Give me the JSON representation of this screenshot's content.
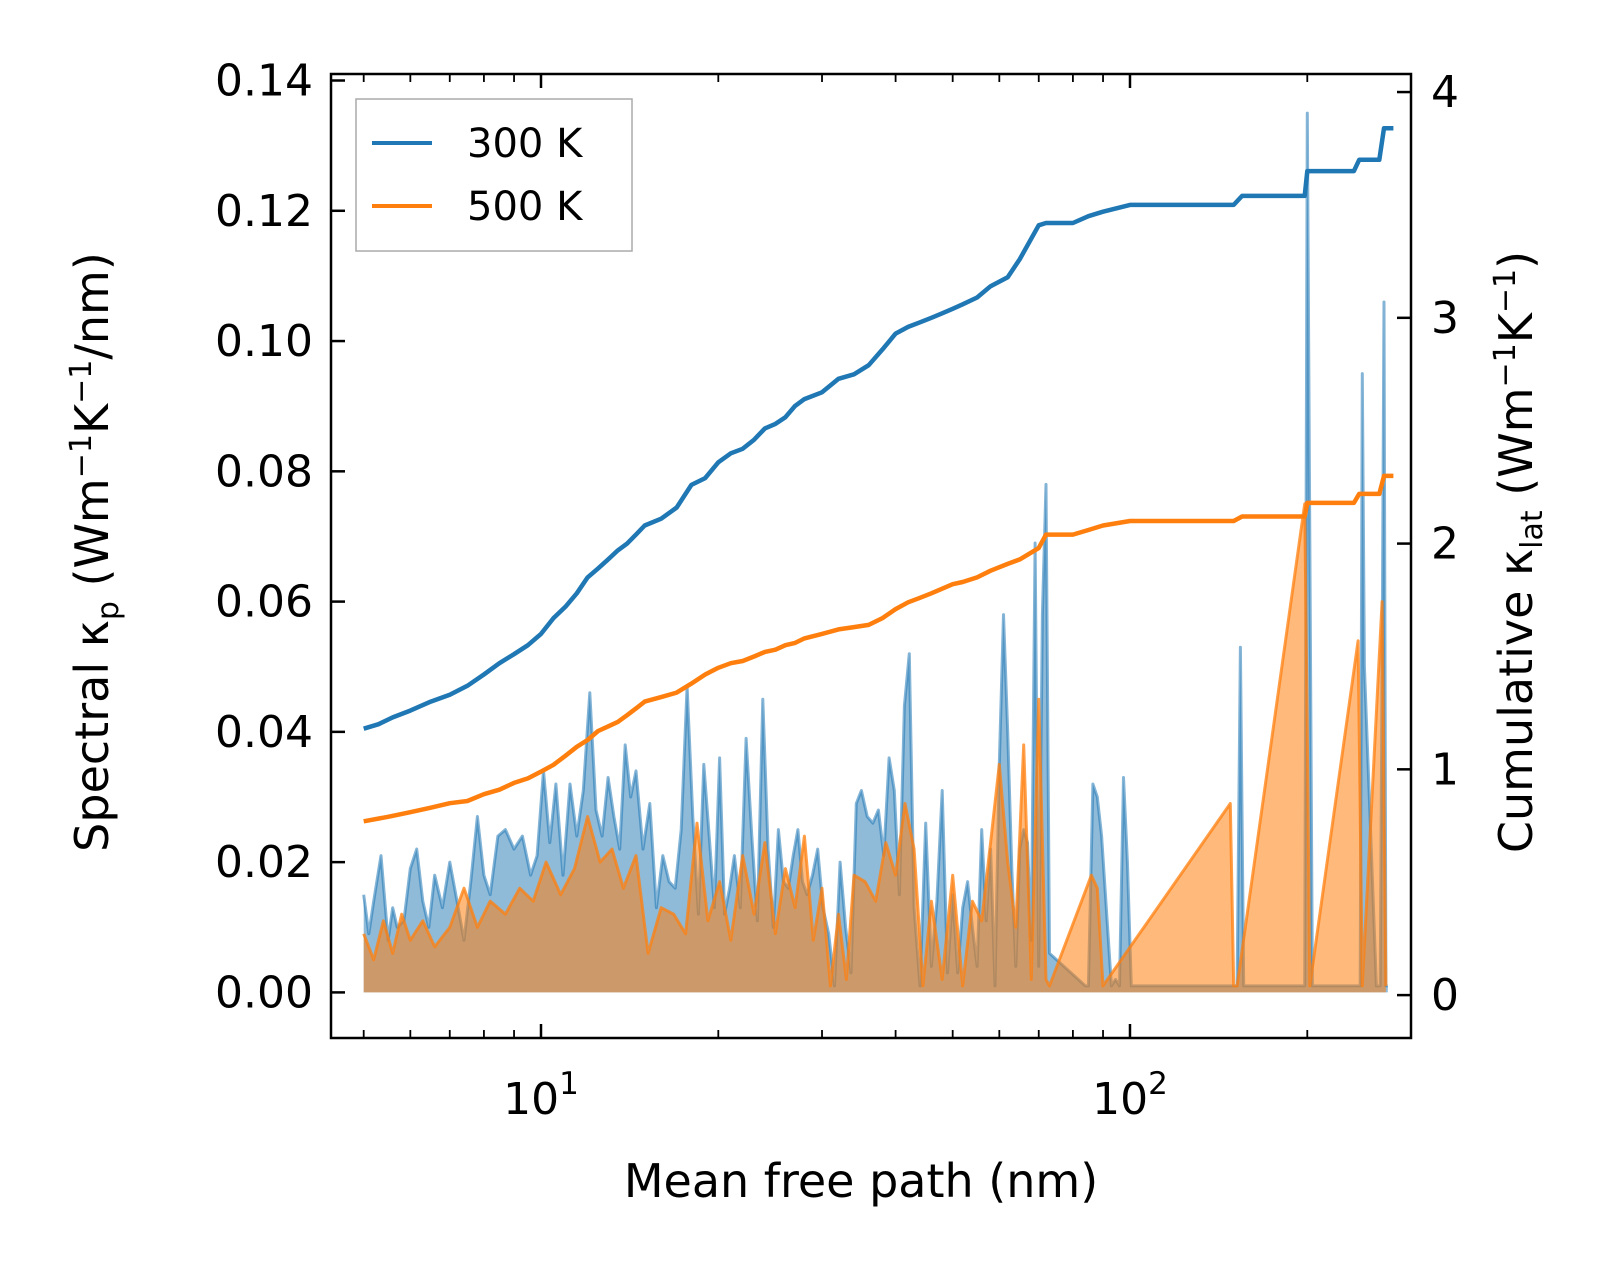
{
  "chart_data": {
    "type": "line",
    "xscale": "log",
    "xlim": [
      4.4,
      300
    ],
    "ylim_left": [
      -0.007,
      0.141
    ],
    "ylim_right": [
      -0.19,
      4.08
    ],
    "xlabel": "Mean free path (nm)",
    "ylabel_left": {
      "pre": "Spectral κ",
      "sub": "p",
      "post": " (Wm",
      "sup1": "−1",
      "mid": "K",
      "sup2": "−1",
      "end": "/nm)"
    },
    "ylabel_right": {
      "pre": "Cumulative κ",
      "sub": "lat",
      "post": " (Wm",
      "sup1": "−1",
      "mid": "K",
      "sup2": "−1",
      "end": ")"
    },
    "yticks_left": [
      "0.00",
      "0.02",
      "0.04",
      "0.06",
      "0.08",
      "0.10",
      "0.12",
      "0.14"
    ],
    "yticks_left_values": [
      0,
      0.02,
      0.04,
      0.06,
      0.08,
      0.1,
      0.12,
      0.14
    ],
    "yticks_right": [
      "0",
      "1",
      "2",
      "3",
      "4"
    ],
    "yticks_right_values": [
      0,
      1,
      2,
      3,
      4
    ],
    "xticks_major": [
      {
        "base": "10",
        "exp": "1",
        "value": 10
      },
      {
        "base": "10",
        "exp": "2",
        "value": 100
      }
    ],
    "xticks_minor": [
      5,
      6,
      7,
      8,
      9,
      20,
      30,
      40,
      50,
      60,
      70,
      80,
      90,
      200,
      300
    ],
    "legend": {
      "placement": "top-left",
      "entries": [
        {
          "label": "300 K",
          "color": "#1f77b4"
        },
        {
          "label": "500 K",
          "color": "#ff7f0e"
        }
      ]
    },
    "series": [
      {
        "name": "300 K",
        "color": "#1f77b4",
        "cumulative_x": [
          5.0,
          5.3,
          5.6,
          6.0,
          6.5,
          7.0,
          7.5,
          8.0,
          8.5,
          9.0,
          9.5,
          10.0,
          10.5,
          11.0,
          11.5,
          12.0,
          12.5,
          13.0,
          13.5,
          14.0,
          14.5,
          15.0,
          16.0,
          17.0,
          18.0,
          19.0,
          20.0,
          21.0,
          22.0,
          23.0,
          24.0,
          25.0,
          26.0,
          27.0,
          28.0,
          30.0,
          32.0,
          34.0,
          36.0,
          38.0,
          40.0,
          42.0,
          44.0,
          46.0,
          48.0,
          50.0,
          52.0,
          55.0,
          58.0,
          62.0,
          65.0,
          70.0,
          72.0,
          80.0,
          85.0,
          90.0,
          100.0,
          120.0,
          150.0,
          155.0,
          198.0,
          200.0,
          240.0,
          245.0,
          265.0,
          270.0,
          280.0
        ],
        "cumulative_y": [
          1.18,
          1.2,
          1.23,
          1.26,
          1.3,
          1.33,
          1.37,
          1.42,
          1.47,
          1.51,
          1.55,
          1.6,
          1.67,
          1.72,
          1.78,
          1.85,
          1.89,
          1.93,
          1.97,
          2.0,
          2.04,
          2.08,
          2.11,
          2.16,
          2.26,
          2.29,
          2.36,
          2.4,
          2.42,
          2.46,
          2.51,
          2.53,
          2.56,
          2.61,
          2.64,
          2.67,
          2.73,
          2.75,
          2.79,
          2.86,
          2.93,
          2.96,
          2.98,
          3.0,
          3.02,
          3.04,
          3.06,
          3.09,
          3.14,
          3.18,
          3.26,
          3.41,
          3.42,
          3.42,
          3.45,
          3.47,
          3.5,
          3.5,
          3.5,
          3.54,
          3.54,
          3.65,
          3.65,
          3.7,
          3.7,
          3.84,
          3.84
        ],
        "spectral_x": [
          5.0,
          5.1,
          5.2,
          5.35,
          5.5,
          5.6,
          5.7,
          5.85,
          6.0,
          6.15,
          6.3,
          6.45,
          6.6,
          6.8,
          7.0,
          7.2,
          7.4,
          7.6,
          7.8,
          8.0,
          8.2,
          8.45,
          8.7,
          9.0,
          9.3,
          9.6,
          9.85,
          10.1,
          10.35,
          10.6,
          10.9,
          11.2,
          11.5,
          11.8,
          12.1,
          12.4,
          12.7,
          13.0,
          13.3,
          13.6,
          13.9,
          14.2,
          14.5,
          14.9,
          15.3,
          15.7,
          16.1,
          16.5,
          16.9,
          17.3,
          17.7,
          18.1,
          18.5,
          18.9,
          19.3,
          19.7,
          20.1,
          20.5,
          20.9,
          21.3,
          21.8,
          22.3,
          22.8,
          23.3,
          23.8,
          24.3,
          24.8,
          25.3,
          25.8,
          26.3,
          26.8,
          27.3,
          27.8,
          28.3,
          28.9,
          29.5,
          30.1,
          30.8,
          31.5,
          32.2,
          32.9,
          33.6,
          34.3,
          35.0,
          35.8,
          36.6,
          37.4,
          38.2,
          39.0,
          39.8,
          40.6,
          41.4,
          42.2,
          43.0,
          44.0,
          45.0,
          46.0,
          47.0,
          48.0,
          49.0,
          50.0,
          51.0,
          52.0,
          53.0,
          54.0,
          55.0,
          56.0,
          57.0,
          58.0,
          59.0,
          60.0,
          61.0,
          62.0,
          63.0,
          64.0,
          65.0,
          66.0,
          67.0,
          68.0,
          69.0,
          70.0,
          71.0,
          72.0,
          73.0,
          84.0,
          85.0,
          86.5,
          88.0,
          89.5,
          93.0,
          94.5,
          96.0,
          97.5,
          99.0,
          100.5,
          148.0,
          150.0,
          152.0,
          154.0,
          156.0,
          194.0,
          196.0,
          198.0,
          200.0,
          202.0,
          204.0,
          206.0,
          242.0,
          244.0,
          246.0,
          248.0,
          250.0,
          262.0,
          264.0,
          266.0,
          268.0,
          270.0,
          272.0,
          274.0
        ],
        "spectral_y": [
          0.015,
          0.009,
          0.014,
          0.021,
          0.008,
          0.013,
          0.01,
          0.011,
          0.019,
          0.022,
          0.014,
          0.01,
          0.018,
          0.013,
          0.02,
          0.014,
          0.008,
          0.017,
          0.027,
          0.018,
          0.015,
          0.024,
          0.025,
          0.022,
          0.024,
          0.018,
          0.021,
          0.034,
          0.023,
          0.032,
          0.018,
          0.032,
          0.024,
          0.031,
          0.046,
          0.028,
          0.024,
          0.033,
          0.027,
          0.022,
          0.038,
          0.03,
          0.034,
          0.022,
          0.029,
          0.013,
          0.021,
          0.017,
          0.016,
          0.025,
          0.047,
          0.027,
          0.012,
          0.035,
          0.024,
          0.013,
          0.036,
          0.012,
          0.016,
          0.021,
          0.013,
          0.039,
          0.024,
          0.011,
          0.045,
          0.022,
          0.01,
          0.025,
          0.017,
          0.016,
          0.021,
          0.025,
          0.017,
          0.015,
          0.018,
          0.022,
          0.013,
          0.009,
          0.001,
          0.02,
          0.01,
          0.003,
          0.029,
          0.031,
          0.027,
          0.026,
          0.028,
          0.021,
          0.036,
          0.031,
          0.015,
          0.044,
          0.052,
          0.013,
          0.001,
          0.026,
          0.004,
          0.014,
          0.031,
          0.003,
          0.015,
          0.003,
          0.013,
          0.017,
          0.01,
          0.004,
          0.025,
          0.011,
          0.022,
          0.001,
          0.035,
          0.058,
          0.04,
          0.019,
          0.004,
          0.022,
          0.025,
          0.023,
          0.008,
          0.069,
          0.004,
          0.058,
          0.078,
          0.006,
          0.001,
          0.001,
          0.032,
          0.03,
          0.024,
          0.001,
          0.002,
          0.001,
          0.033,
          0.02,
          0.001,
          0.001,
          0.001,
          0.001,
          0.053,
          0.001,
          0.001,
          0.001,
          0.001,
          0.135,
          0.07,
          0.001,
          0.001,
          0.001,
          0.001,
          0.001,
          0.095,
          0.05,
          0.001,
          0.001,
          0.001,
          0.05,
          0.106,
          0.001,
          0.001,
          0.001
        ]
      },
      {
        "name": "500 K",
        "color": "#ff7f0e",
        "cumulative_x": [
          5.0,
          5.5,
          6.0,
          6.5,
          7.0,
          7.5,
          8.0,
          8.5,
          9.0,
          9.5,
          10.0,
          10.5,
          11.0,
          11.5,
          12.0,
          12.5,
          13.0,
          13.5,
          14.0,
          14.5,
          15.0,
          16.0,
          17.0,
          18.0,
          19.0,
          20.0,
          21.0,
          22.0,
          23.0,
          24.0,
          25.0,
          26.0,
          27.0,
          28.0,
          30.0,
          32.0,
          34.0,
          36.0,
          38.0,
          40.0,
          42.0,
          44.0,
          46.0,
          48.0,
          50.0,
          52.0,
          55.0,
          58.0,
          62.0,
          65.0,
          70.0,
          72.0,
          80.0,
          85.0,
          90.0,
          100.0,
          150.0,
          155.0,
          198.0,
          200.0,
          240.0,
          245.0,
          265.0,
          270.0,
          280.0
        ],
        "cumulative_y": [
          0.77,
          0.79,
          0.81,
          0.83,
          0.85,
          0.86,
          0.89,
          0.91,
          0.94,
          0.96,
          0.99,
          1.02,
          1.06,
          1.1,
          1.13,
          1.17,
          1.19,
          1.21,
          1.24,
          1.27,
          1.3,
          1.32,
          1.34,
          1.38,
          1.42,
          1.45,
          1.47,
          1.48,
          1.5,
          1.52,
          1.53,
          1.55,
          1.56,
          1.58,
          1.6,
          1.62,
          1.63,
          1.64,
          1.67,
          1.71,
          1.74,
          1.76,
          1.78,
          1.8,
          1.82,
          1.83,
          1.85,
          1.88,
          1.91,
          1.93,
          1.98,
          2.04,
          2.04,
          2.06,
          2.08,
          2.1,
          2.1,
          2.12,
          2.12,
          2.18,
          2.18,
          2.22,
          2.22,
          2.3,
          2.3
        ],
        "spectral_x": [
          5.0,
          5.2,
          5.4,
          5.6,
          5.8,
          6.0,
          6.3,
          6.6,
          7.0,
          7.4,
          7.8,
          8.2,
          8.7,
          9.2,
          9.7,
          10.2,
          10.8,
          11.4,
          12.0,
          12.6,
          13.2,
          13.8,
          14.5,
          15.2,
          16.0,
          16.8,
          17.6,
          18.4,
          19.2,
          20.1,
          21.0,
          22.0,
          23.0,
          24.0,
          25.0,
          26.0,
          27.0,
          28.0,
          29.0,
          30.0,
          31.0,
          32.0,
          33.0,
          34.0,
          35.5,
          37.0,
          38.5,
          40.0,
          41.5,
          43.0,
          44.5,
          46.0,
          48.0,
          50.0,
          52.0,
          54.0,
          56.0,
          58.0,
          60.0,
          62.0,
          64.0,
          66.0,
          68.0,
          70.0,
          72.0,
          73.0,
          86.0,
          88.0,
          90.0,
          148.0,
          150.0,
          152.0,
          198.0,
          200.0,
          202.0,
          244.0,
          246.0,
          248.0,
          268.0,
          270.0,
          272.0
        ],
        "spectral_y": [
          0.009,
          0.005,
          0.011,
          0.006,
          0.012,
          0.008,
          0.011,
          0.007,
          0.01,
          0.016,
          0.01,
          0.014,
          0.012,
          0.016,
          0.014,
          0.02,
          0.015,
          0.019,
          0.027,
          0.02,
          0.022,
          0.016,
          0.021,
          0.006,
          0.013,
          0.012,
          0.009,
          0.026,
          0.011,
          0.017,
          0.008,
          0.021,
          0.012,
          0.023,
          0.009,
          0.019,
          0.013,
          0.024,
          0.008,
          0.016,
          0.001,
          0.012,
          0.002,
          0.018,
          0.017,
          0.014,
          0.023,
          0.018,
          0.029,
          0.022,
          0.001,
          0.014,
          0.002,
          0.018,
          0.001,
          0.014,
          0.011,
          0.023,
          0.035,
          0.02,
          0.01,
          0.038,
          0.002,
          0.045,
          0.002,
          0.001,
          0.018,
          0.016,
          0.001,
          0.029,
          0.001,
          0.001,
          0.075,
          0.04,
          0.001,
          0.054,
          0.028,
          0.001,
          0.06,
          0.03,
          0.001
        ]
      }
    ]
  }
}
